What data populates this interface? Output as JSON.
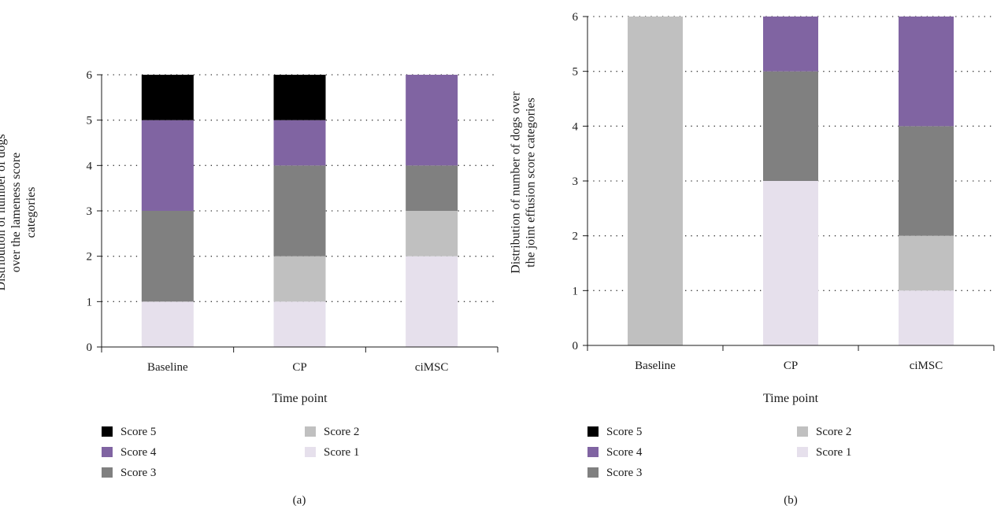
{
  "colors": {
    "score1": "#e6e0ec",
    "score2": "#c0c0c0",
    "score3": "#808080",
    "score4": "#8064a2",
    "score5": "#000000"
  },
  "chart_data": [
    {
      "type": "bar",
      "stacked": true,
      "categories": [
        "Baseline",
        "CP",
        "ciMSC"
      ],
      "series": [
        {
          "name": "Score 1",
          "color_key": "score1",
          "values": [
            1,
            1,
            2
          ]
        },
        {
          "name": "Score 2",
          "color_key": "score2",
          "values": [
            0,
            1,
            1
          ]
        },
        {
          "name": "Score 3",
          "color_key": "score3",
          "values": [
            2,
            2,
            1
          ]
        },
        {
          "name": "Score 4",
          "color_key": "score4",
          "values": [
            2,
            1,
            2
          ]
        },
        {
          "name": "Score 5",
          "color_key": "score5",
          "values": [
            1,
            1,
            0
          ]
        }
      ],
      "xlabel": "Time point",
      "ylabel_lines": [
        "Distribution of number of dogs",
        "over the lameness score",
        "categories"
      ],
      "ylim": [
        0,
        6
      ],
      "yticks": [
        "0",
        "1",
        "2",
        "3",
        "4",
        "5",
        "6"
      ],
      "grid": "horizontal dotted",
      "legend_placement": "bottom",
      "legend_order": [
        "Score 5",
        "Score 4",
        "Score 3",
        "Score 2",
        "Score 1"
      ],
      "panel_label": "(a)"
    },
    {
      "type": "bar",
      "stacked": true,
      "categories": [
        "Baseline",
        "CP",
        "ciMSC"
      ],
      "series": [
        {
          "name": "Score 1",
          "color_key": "score1",
          "values": [
            0,
            3,
            1
          ]
        },
        {
          "name": "Score 2",
          "color_key": "score2",
          "values": [
            6,
            0,
            1
          ]
        },
        {
          "name": "Score 3",
          "color_key": "score3",
          "values": [
            0,
            2,
            2
          ]
        },
        {
          "name": "Score 4",
          "color_key": "score4",
          "values": [
            0,
            1,
            2
          ]
        },
        {
          "name": "Score 5",
          "color_key": "score5",
          "values": [
            0,
            0,
            0
          ]
        }
      ],
      "xlabel": "Time point",
      "ylabel_lines": [
        "Distribution of number of dogs over",
        "the joint effusion score categories"
      ],
      "ylim": [
        0,
        6
      ],
      "yticks": [
        "0",
        "1",
        "2",
        "3",
        "4",
        "5",
        "6"
      ],
      "grid": "horizontal dotted",
      "legend_placement": "bottom",
      "legend_order": [
        "Score 5",
        "Score 4",
        "Score 3",
        "Score 2",
        "Score 1"
      ],
      "panel_label": "(b)"
    }
  ]
}
